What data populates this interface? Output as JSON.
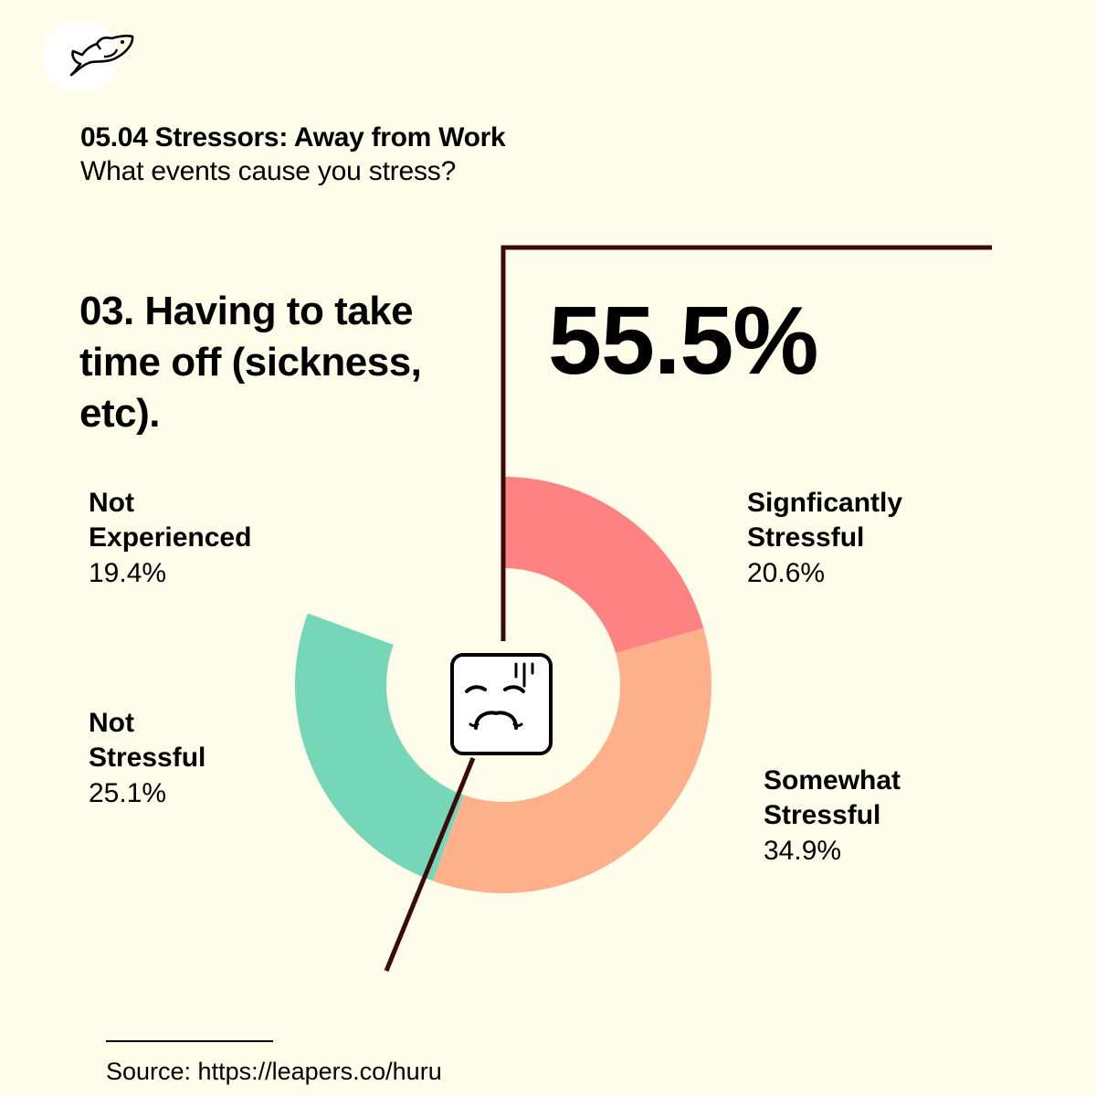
{
  "header": {
    "title": "05.04 Stressors: Away from Work",
    "subtitle": "What events cause you stress?"
  },
  "question": "03. Having to take time off (sickness, etc).",
  "highlight_value": "55.5%",
  "source": "Source: https://leapers.co/huru",
  "logo_icon": "fish-icon",
  "center_icon": "distressed-face-icon",
  "labels": {
    "significantly": {
      "line1": "Signficantly",
      "line2": "Stressful",
      "value": "20.6%"
    },
    "somewhat": {
      "line1": "Somewhat",
      "line2": "Stressful",
      "value": "34.9%"
    },
    "not_stressful": {
      "line1": "Not",
      "line2": "Stressful",
      "value": "25.1%"
    },
    "not_experienced": {
      "line1": "Not",
      "line2": "Experienced",
      "value": "19.4%"
    }
  },
  "chart_data": {
    "type": "pie",
    "style": "donut",
    "start": "top, clockwise",
    "categories": [
      "Signficantly Stressful",
      "Somewhat Stressful",
      "Not Stressful",
      "Not Experienced"
    ],
    "values": [
      20.6,
      34.9,
      25.1,
      19.4
    ],
    "colors": [
      "#ff8282",
      "#feb08b",
      "#76d7b8",
      "#fefde9"
    ],
    "highlight_total": 55.5
  },
  "colors": {
    "background": "#fefde9",
    "divider": "#3d0a0a",
    "text": "#000000"
  }
}
